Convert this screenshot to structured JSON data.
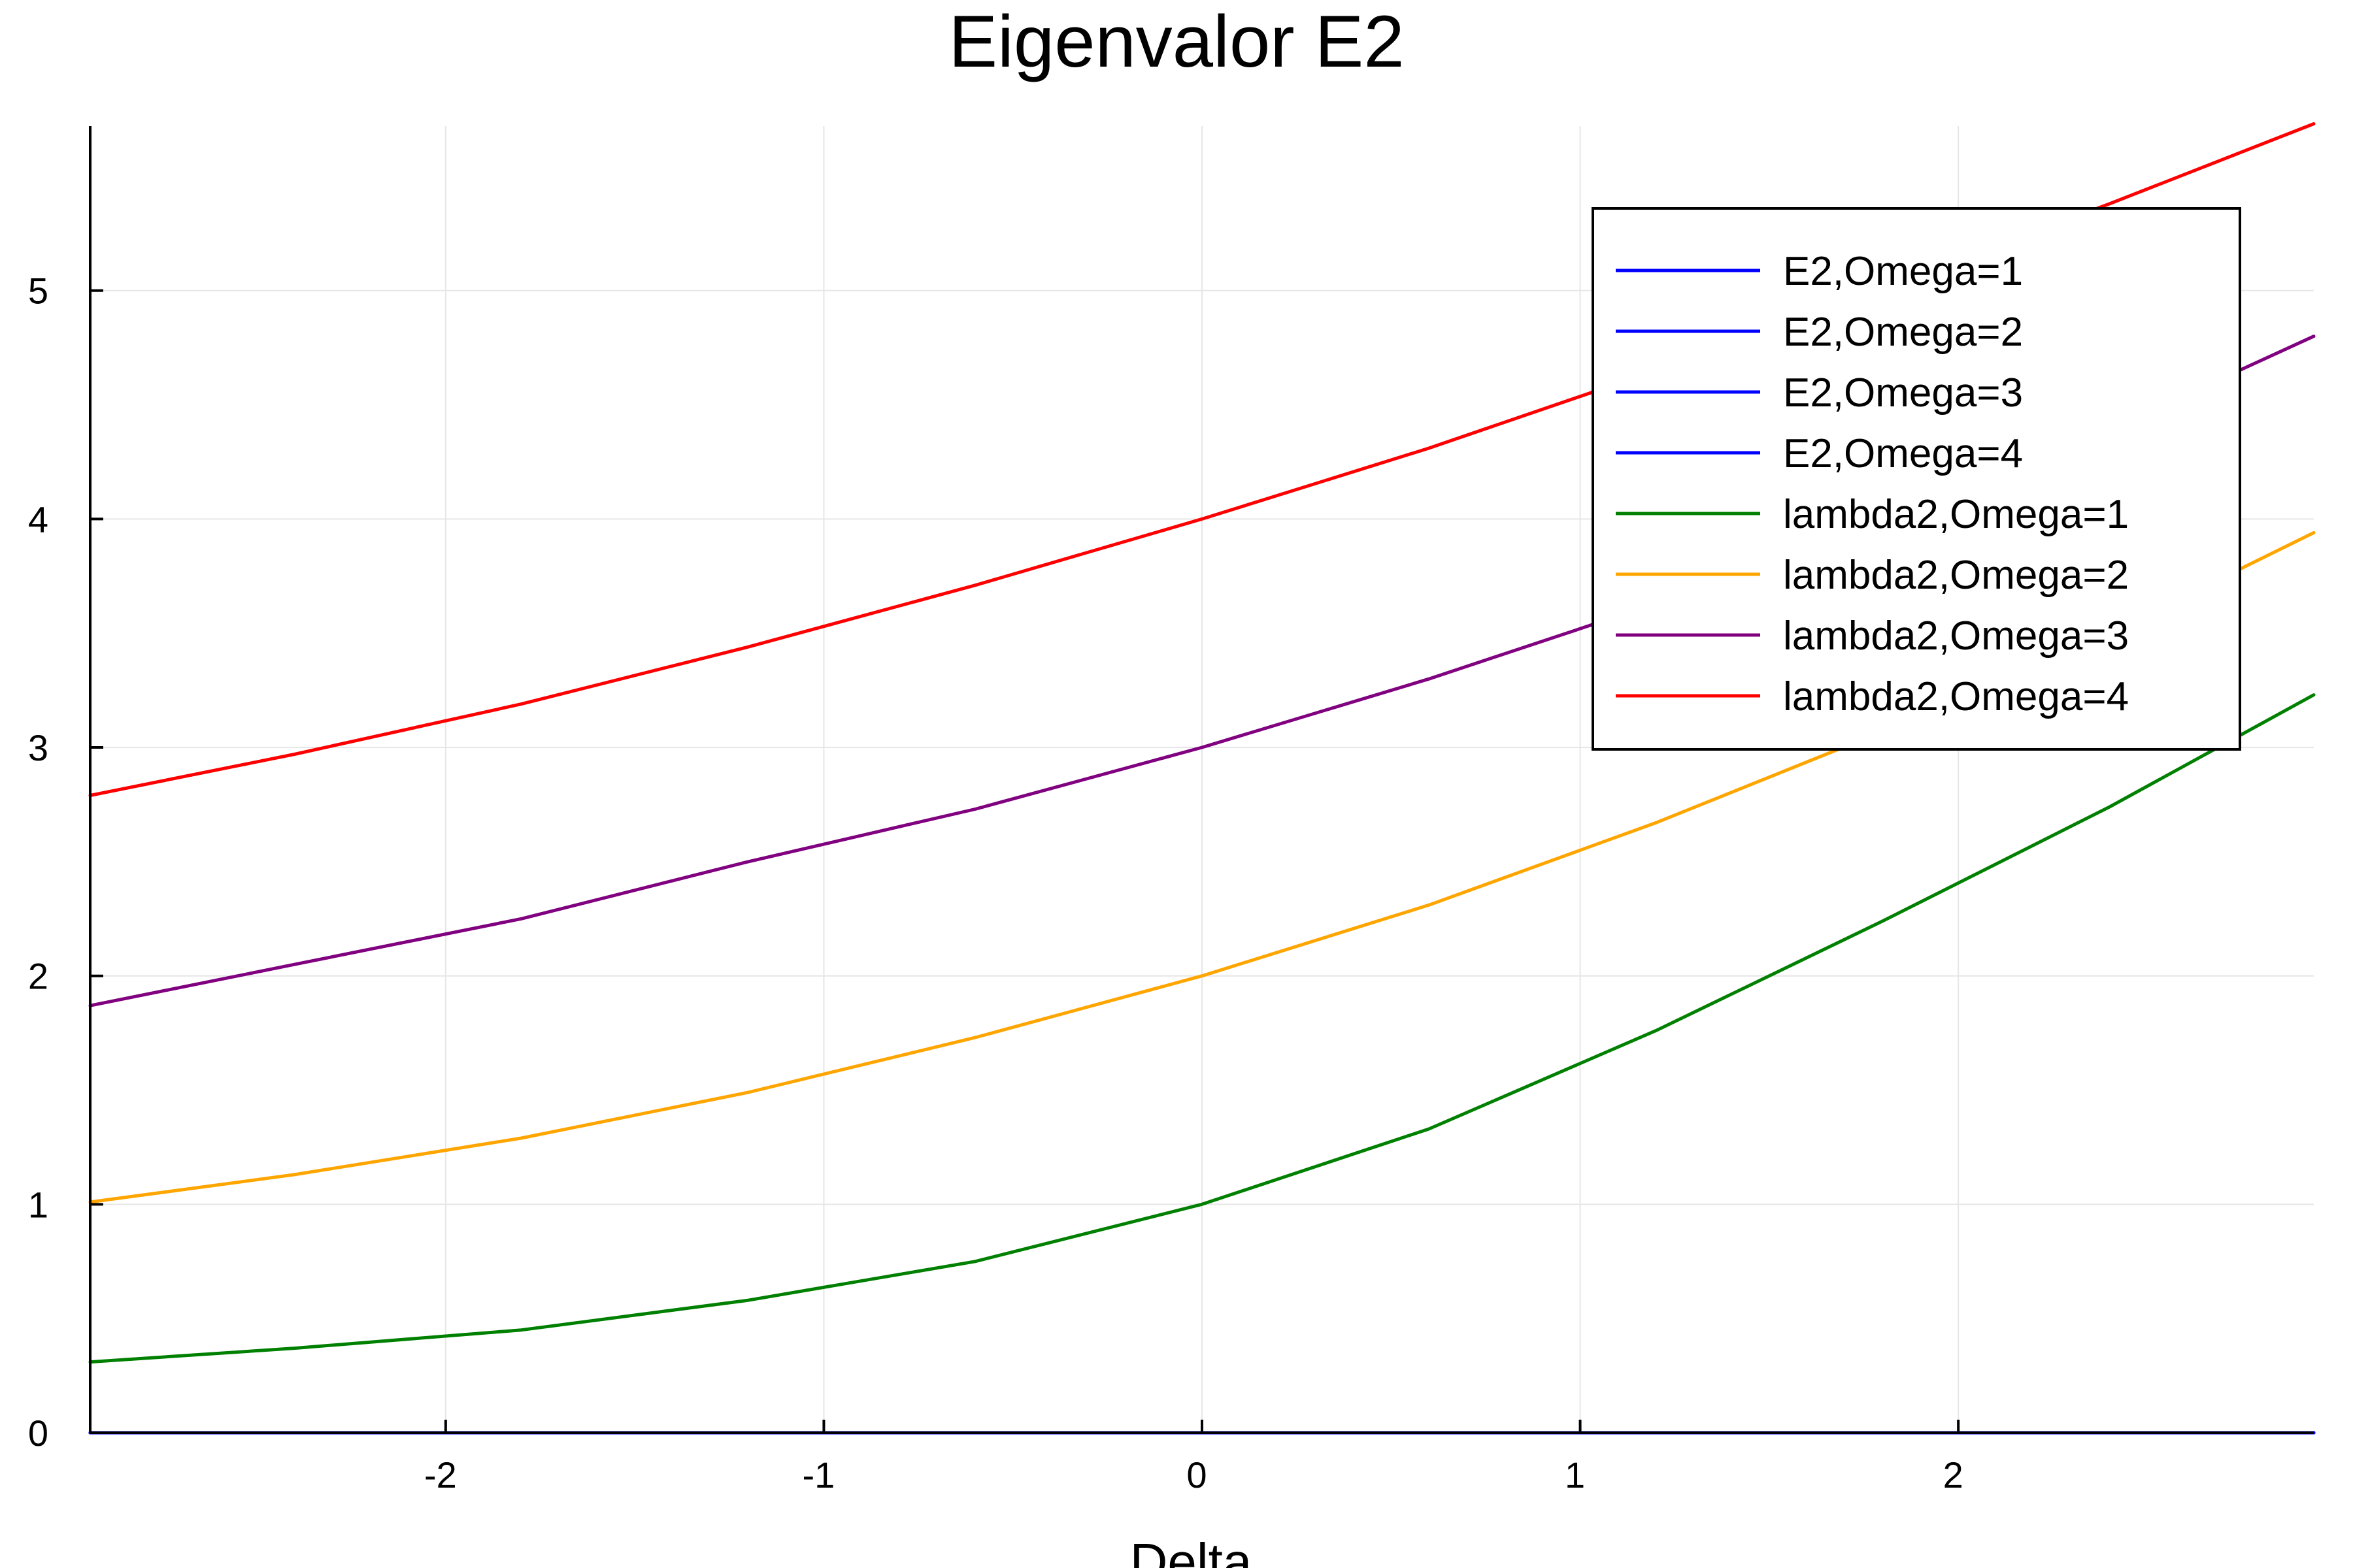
{
  "chart_data": {
    "type": "line",
    "title": "Eigenvalor E2",
    "xlabel": "Delta",
    "ylabel": "",
    "xlim": [
      -2.94,
      2.94
    ],
    "ylim": [
      0,
      5.72
    ],
    "xticks": [
      -2,
      -1,
      0,
      1,
      2
    ],
    "xtick_labels": [
      "-2",
      "-1",
      "0",
      "1",
      "2"
    ],
    "yticks": [
      0,
      1,
      2,
      3,
      4,
      5
    ],
    "ytick_labels": [
      "0",
      "1",
      "2",
      "3",
      "4",
      "5"
    ],
    "grid": true,
    "legend_position": "top-right",
    "x": [
      -2.94,
      -2.4,
      -1.8,
      -1.2,
      -0.6,
      0,
      0.6,
      1.2,
      1.8,
      2.4,
      2.94
    ],
    "series": [
      {
        "name": "E2,Omega=1",
        "color": "#0000ff",
        "values": [
          0,
          0,
          0,
          0,
          0,
          0,
          0,
          0,
          0,
          0,
          0
        ]
      },
      {
        "name": "E2,Omega=2",
        "color": "#0000ff",
        "values": [
          0,
          0,
          0,
          0,
          0,
          0,
          0,
          0,
          0,
          0,
          0
        ]
      },
      {
        "name": "E2,Omega=3",
        "color": "#0000ff",
        "values": [
          0,
          0,
          0,
          0,
          0,
          0,
          0,
          0,
          0,
          0,
          0
        ]
      },
      {
        "name": "E2,Omega=4",
        "color": "#0000ff",
        "values": [
          0,
          0,
          0,
          0,
          0,
          0,
          0,
          0,
          0,
          0,
          0
        ]
      },
      {
        "name": "lambda2,Omega=1",
        "color": "#008000",
        "values": [
          0.31,
          0.37,
          0.45,
          0.58,
          0.75,
          1.0,
          1.33,
          1.76,
          2.24,
          2.74,
          3.23
        ]
      },
      {
        "name": "lambda2,Omega=2",
        "color": "#ffa500",
        "values": [
          1.01,
          1.13,
          1.29,
          1.49,
          1.73,
          2.0,
          2.31,
          2.67,
          3.07,
          3.5,
          3.94
        ]
      },
      {
        "name": "lambda2,Omega=3",
        "color": "#800080",
        "values": [
          1.87,
          2.05,
          2.25,
          2.5,
          2.73,
          3.0,
          3.3,
          3.63,
          3.99,
          4.39,
          4.8
        ]
      },
      {
        "name": "lambda2,Omega=4",
        "color": "#ff0000",
        "values": [
          2.79,
          2.97,
          3.19,
          3.44,
          3.71,
          4.0,
          4.31,
          4.65,
          5.01,
          5.38,
          5.73
        ]
      }
    ]
  }
}
